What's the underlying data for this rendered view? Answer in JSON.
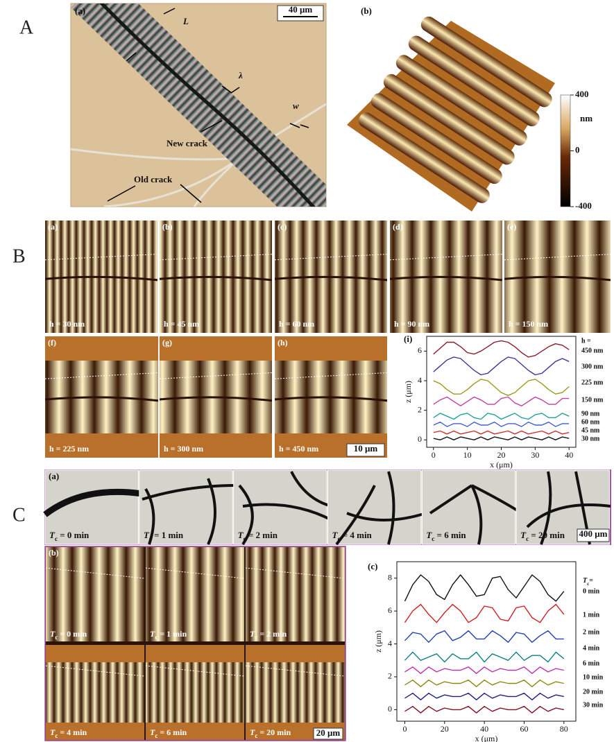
{
  "figure_labels": [
    "A",
    "B",
    "C"
  ],
  "panel_A": {
    "a": {
      "label": "(a)",
      "scale_bar": "40 μm",
      "annotations": [
        "L",
        "λ",
        "w",
        "New crack",
        "Old crack"
      ]
    },
    "b": {
      "label": "(b)",
      "colorbar": {
        "ticks": [
          400,
          0,
          -400
        ],
        "unit": "nm"
      }
    }
  },
  "panel_B": {
    "images": [
      {
        "label": "(a)",
        "h": "h = 30 nm"
      },
      {
        "label": "(b)",
        "h": "h = 45 nm"
      },
      {
        "label": "(c)",
        "h": "h = 60 nm"
      },
      {
        "label": "(d)",
        "h": "h = 90 nm"
      },
      {
        "label": "(e)",
        "h": "h = 150 nm"
      },
      {
        "label": "(f)",
        "h": "h = 225 nm"
      },
      {
        "label": "(g)",
        "h": "h = 300 nm"
      },
      {
        "label": "(h)",
        "h": "h = 450 nm"
      }
    ],
    "scale_bar": "10 μm"
  },
  "panel_C": {
    "a": {
      "label": "(a)",
      "images": [
        {
          "symbol": "T",
          "sub": "c",
          "text": " = 0 min"
        },
        {
          "symbol": "T",
          "sub": "c",
          "text": " = 1 min"
        },
        {
          "symbol": "T",
          "sub": "c",
          "text": " = 2 min"
        },
        {
          "symbol": "T",
          "sub": "c",
          "text": " = 4 min"
        },
        {
          "symbol": "T",
          "sub": "c",
          "text": " = 6 min"
        },
        {
          "symbol": "T",
          "sub": "c",
          "text": " = 20 min"
        }
      ],
      "scale_bar": "400 μm"
    },
    "b": {
      "label": "(b)",
      "images": [
        {
          "symbol": "T",
          "sub": "c",
          "text": " = 0 min"
        },
        {
          "symbol": "T",
          "sub": "c",
          "text": " = 1 min"
        },
        {
          "symbol": "T",
          "sub": "c",
          "text": " = 2 min"
        },
        {
          "symbol": "T",
          "sub": "c",
          "text": " = 4 min"
        },
        {
          "symbol": "T",
          "sub": "c",
          "text": " = 6 min"
        },
        {
          "symbol": "T",
          "sub": "c",
          "text": " = 20 min"
        }
      ],
      "scale_bar": "20 μm"
    }
  },
  "chart_data": [
    {
      "type": "line",
      "label": "(i)",
      "xlabel": "x (μm)",
      "ylabel": "z (μm)",
      "legend_title": {
        "text": "h ="
      },
      "x": [
        0,
        2,
        4,
        6,
        8,
        10,
        12,
        14,
        16,
        18,
        20,
        22,
        24,
        26,
        28,
        30,
        32,
        34,
        36,
        38,
        40
      ],
      "xlim": [
        -2,
        42
      ],
      "ylim": [
        -0.5,
        7
      ],
      "xticks": [
        0,
        10,
        20,
        30,
        40
      ],
      "yticks": [
        0,
        2,
        4,
        6
      ],
      "series": [
        {
          "name": "450 nm",
          "color": "#8b1a2a",
          "values": [
            5.8,
            6.2,
            6.6,
            6.6,
            6.3,
            5.9,
            5.8,
            6.0,
            6.3,
            6.6,
            6.7,
            6.6,
            6.3,
            5.9,
            5.6,
            5.7,
            6.0,
            6.3,
            6.5,
            6.4,
            6.1
          ]
        },
        {
          "name": "300 nm",
          "color": "#3a3a9a",
          "values": [
            4.6,
            5.0,
            5.4,
            5.6,
            5.5,
            5.1,
            4.7,
            4.4,
            4.5,
            4.9,
            5.3,
            5.6,
            5.5,
            5.1,
            4.7,
            4.4,
            4.5,
            4.9,
            5.3,
            5.5,
            5.3
          ]
        },
        {
          "name": "225 nm",
          "color": "#9a9a20",
          "values": [
            4.0,
            3.8,
            3.4,
            3.1,
            3.1,
            3.4,
            3.8,
            4.1,
            4.0,
            3.6,
            3.2,
            3.0,
            3.2,
            3.6,
            4.0,
            4.1,
            3.8,
            3.4,
            3.1,
            3.2,
            3.6
          ]
        },
        {
          "name": "150 nm",
          "color": "#c040a0",
          "values": [
            2.4,
            2.7,
            2.9,
            2.6,
            2.3,
            2.6,
            2.9,
            2.7,
            2.4,
            2.4,
            2.8,
            2.9,
            2.5,
            2.3,
            2.6,
            2.9,
            2.7,
            2.4,
            2.4,
            2.8,
            2.8
          ]
        },
        {
          "name": "90 nm",
          "color": "#20a0a0",
          "values": [
            1.5,
            1.8,
            1.6,
            1.4,
            1.7,
            1.8,
            1.5,
            1.4,
            1.8,
            1.7,
            1.4,
            1.6,
            1.8,
            1.5,
            1.4,
            1.7,
            1.8,
            1.5,
            1.5,
            1.8,
            1.6
          ]
        },
        {
          "name": "60 nm",
          "color": "#4060d0",
          "values": [
            1.0,
            1.2,
            0.9,
            1.1,
            1.1,
            0.9,
            1.2,
            1.0,
            1.0,
            1.2,
            0.9,
            1.1,
            1.1,
            0.9,
            1.2,
            1.0,
            1.0,
            1.2,
            0.9,
            1.1,
            1.1
          ]
        },
        {
          "name": "45 nm",
          "color": "#d03030",
          "values": [
            0.5,
            0.6,
            0.4,
            0.6,
            0.4,
            0.5,
            0.6,
            0.4,
            0.6,
            0.4,
            0.5,
            0.6,
            0.4,
            0.6,
            0.4,
            0.5,
            0.6,
            0.4,
            0.6,
            0.4,
            0.5
          ]
        },
        {
          "name": "30 nm",
          "color": "#111111",
          "values": [
            0.1,
            0.0,
            0.2,
            0.0,
            0.2,
            0.1,
            0.0,
            0.2,
            0.0,
            0.2,
            0.1,
            0.0,
            0.2,
            0.0,
            0.2,
            0.1,
            0.0,
            0.2,
            0.0,
            0.2,
            0.1
          ]
        }
      ]
    },
    {
      "type": "line",
      "label": "(c)",
      "xlabel": "x (μm)",
      "ylabel": "z (μm)",
      "legend_title": {
        "symbol": "T",
        "sub": "c",
        "text": "="
      },
      "x": [
        0,
        4,
        8,
        12,
        16,
        20,
        24,
        28,
        32,
        36,
        40,
        44,
        48,
        52,
        56,
        60,
        64,
        68,
        72,
        76,
        80
      ],
      "xlim": [
        -4,
        86
      ],
      "ylim": [
        -0.7,
        9
      ],
      "xticks": [
        0,
        20,
        40,
        60,
        80
      ],
      "yticks": [
        0,
        2,
        4,
        6,
        8
      ],
      "series": [
        {
          "name": "0 min",
          "color": "#111111",
          "values": [
            6.6,
            7.6,
            8.2,
            7.8,
            7.0,
            6.7,
            7.6,
            8.2,
            7.6,
            6.9,
            7.0,
            8.0,
            8.1,
            7.3,
            6.8,
            7.5,
            8.2,
            7.8,
            7.0,
            6.6,
            7.2
          ]
        },
        {
          "name": "1 min",
          "color": "#d02020",
          "values": [
            5.3,
            6.0,
            6.4,
            5.8,
            5.3,
            5.9,
            6.4,
            6.0,
            5.3,
            5.6,
            6.3,
            6.2,
            5.5,
            5.4,
            6.2,
            6.3,
            5.6,
            5.3,
            6.0,
            6.4,
            5.8
          ]
        },
        {
          "name": "2 min",
          "color": "#2040b0",
          "values": [
            4.2,
            4.7,
            4.6,
            4.1,
            4.6,
            4.8,
            4.2,
            4.4,
            4.8,
            4.3,
            4.3,
            4.8,
            4.5,
            4.1,
            4.7,
            4.6,
            4.1,
            4.5,
            4.8,
            4.3,
            4.3
          ]
        },
        {
          "name": "4 min",
          "color": "#108080",
          "values": [
            3.0,
            3.5,
            3.0,
            3.2,
            3.4,
            2.9,
            3.4,
            3.1,
            3.1,
            3.5,
            2.9,
            3.4,
            3.2,
            3.0,
            3.5,
            3.0,
            3.3,
            3.3,
            2.9,
            3.5,
            3.1
          ]
        },
        {
          "name": "6 min",
          "color": "#c030b0",
          "values": [
            2.3,
            2.6,
            2.2,
            2.6,
            2.3,
            2.5,
            2.4,
            2.4,
            2.6,
            2.2,
            2.6,
            2.3,
            2.5,
            2.4,
            2.4,
            2.6,
            2.2,
            2.6,
            2.3,
            2.5,
            2.4
          ]
        },
        {
          "name": "10 min",
          "color": "#8a8a10",
          "values": [
            1.5,
            1.8,
            1.4,
            1.8,
            1.5,
            1.7,
            1.6,
            1.6,
            1.8,
            1.4,
            1.8,
            1.5,
            1.7,
            1.6,
            1.6,
            1.8,
            1.4,
            1.8,
            1.5,
            1.7,
            1.6
          ]
        },
        {
          "name": "20 min",
          "color": "#202080",
          "values": [
            0.7,
            1.0,
            0.6,
            1.0,
            0.7,
            0.9,
            0.8,
            0.8,
            1.0,
            0.6,
            1.0,
            0.7,
            0.9,
            0.8,
            0.8,
            1.0,
            0.6,
            1.0,
            0.7,
            0.9,
            0.8
          ]
        },
        {
          "name": "30 min",
          "color": "#801020",
          "values": [
            -0.1,
            0.2,
            -0.2,
            0.2,
            -0.1,
            0.1,
            0.0,
            0.0,
            0.2,
            -0.2,
            0.2,
            -0.1,
            0.1,
            0.0,
            0.0,
            0.2,
            -0.2,
            0.2,
            -0.1,
            0.1,
            0.0
          ]
        }
      ]
    }
  ]
}
